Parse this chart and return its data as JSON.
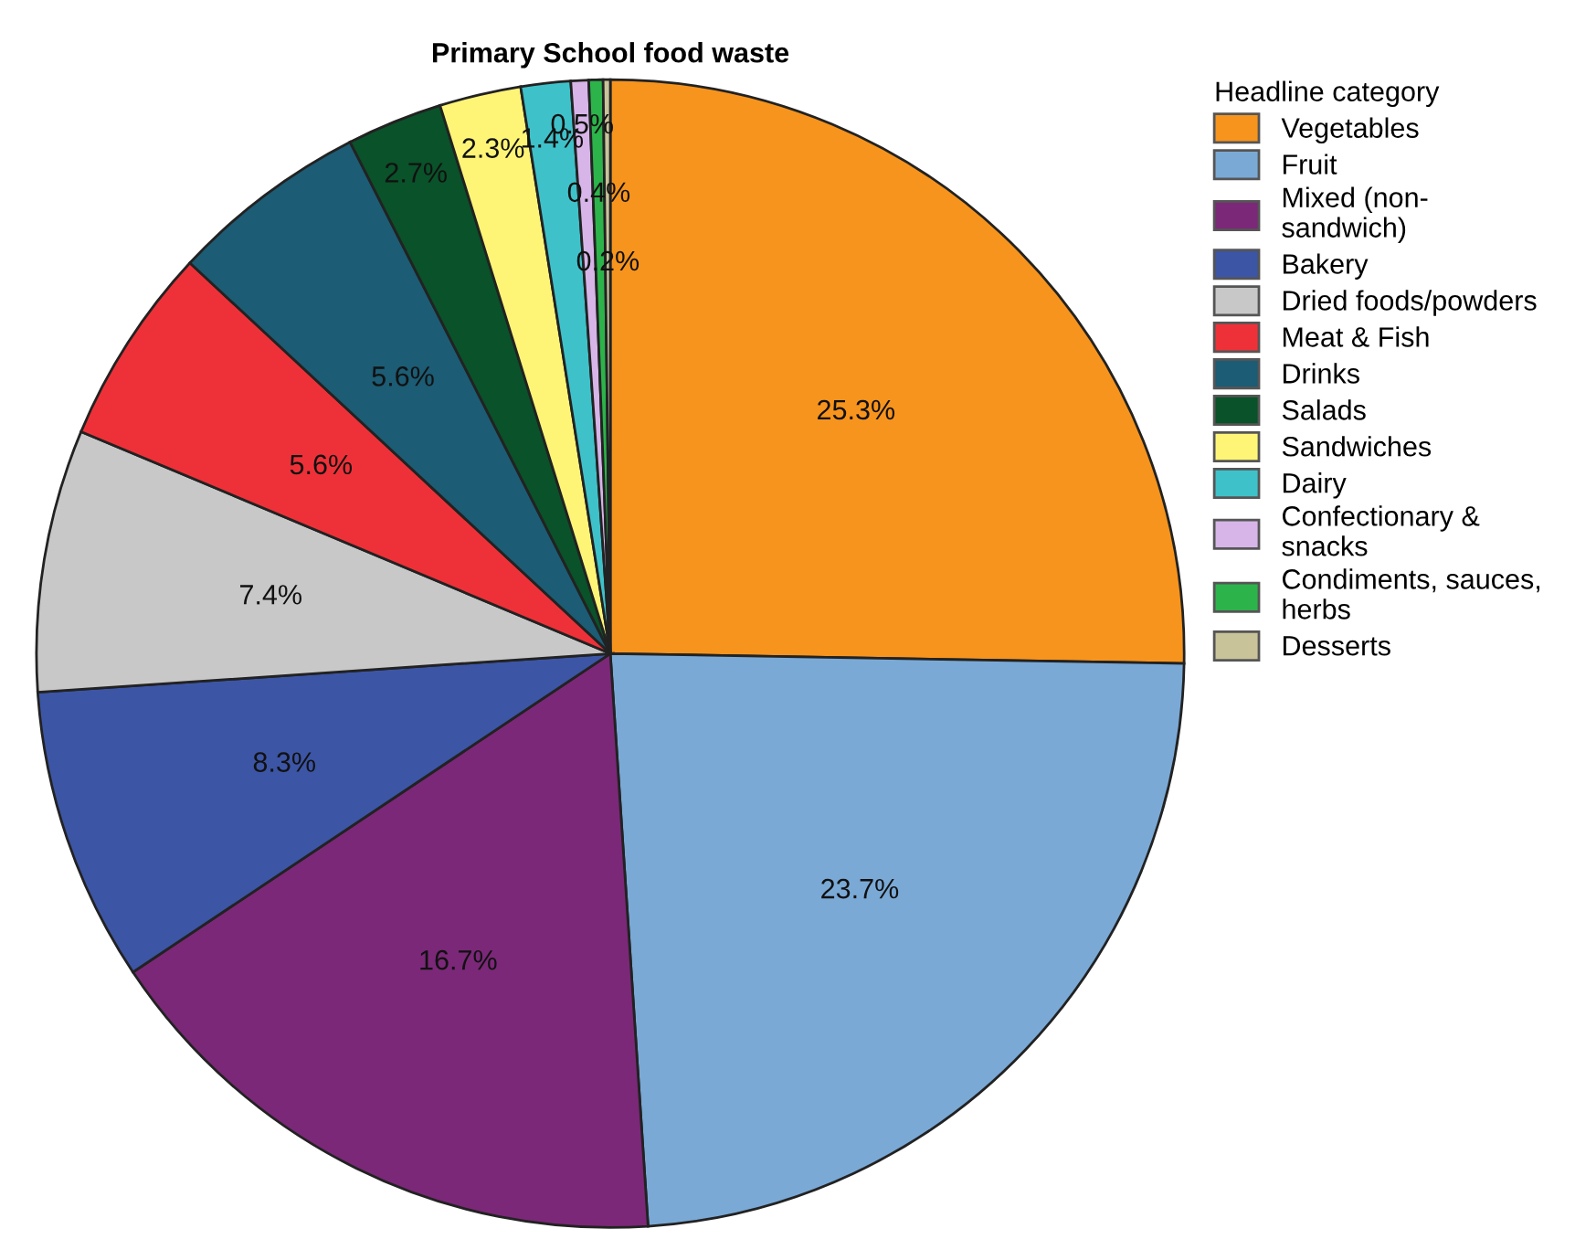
{
  "chart_data": {
    "type": "pie",
    "title": "Primary School food waste",
    "legend_title": "Headline category",
    "legend": "right",
    "categories": [
      "Vegetables",
      "Fruit",
      "Mixed (non-\nsandwich)",
      "Bakery",
      "Dried foods/powders",
      "Meat & Fish",
      "Drinks",
      "Salads",
      "Sandwiches",
      "Dairy",
      "Confectionary &\nsnacks",
      "Condiments, sauces,\nherbs",
      "Desserts"
    ],
    "values": [
      25.3,
      23.7,
      16.7,
      8.3,
      7.4,
      5.6,
      5.6,
      2.7,
      2.3,
      1.4,
      0.5,
      0.4,
      0.2
    ],
    "colors": [
      "#f7941d",
      "#7aa9d6",
      "#7b2878",
      "#3c55a5",
      "#c8c8c8",
      "#ee3138",
      "#1c5c74",
      "#0a5229",
      "#fef577",
      "#3fc1c9",
      "#d7b5e8",
      "#2cb34a",
      "#c9c39a"
    ],
    "value_labels": [
      "25.3%",
      "23.7%",
      "16.7%",
      "8.3%",
      "7.4%",
      "5.6%",
      "5.6%",
      "2.7%",
      "2.3%",
      "1.4%",
      "0.5%",
      "0.4%",
      "0.2%"
    ]
  }
}
